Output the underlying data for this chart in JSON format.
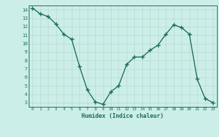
{
  "x": [
    0,
    1,
    2,
    3,
    4,
    5,
    6,
    7,
    8,
    9,
    10,
    11,
    12,
    13,
    14,
    15,
    16,
    17,
    18,
    19,
    20,
    21,
    22,
    23
  ],
  "y": [
    14.2,
    13.5,
    13.2,
    12.3,
    11.1,
    10.5,
    7.3,
    4.5,
    3.1,
    2.8,
    4.3,
    5.0,
    7.5,
    8.4,
    8.4,
    9.2,
    9.8,
    11.1,
    12.2,
    11.9,
    11.1,
    5.8,
    3.5,
    3.0
  ],
  "xlabel": "Humidex (Indice chaleur)",
  "line_color": "#1a6b5a",
  "marker": "+",
  "bg_color": "#cceee8",
  "grid_color": "#b8d8d2",
  "ylim": [
    2.5,
    14.5
  ],
  "xlim": [
    -0.5,
    23.5
  ],
  "yticks": [
    3,
    4,
    5,
    6,
    7,
    8,
    9,
    10,
    11,
    12,
    13,
    14
  ],
  "xticks": [
    0,
    1,
    2,
    3,
    4,
    5,
    6,
    7,
    8,
    9,
    10,
    11,
    12,
    13,
    14,
    15,
    16,
    17,
    18,
    19,
    20,
    21,
    22,
    23
  ]
}
